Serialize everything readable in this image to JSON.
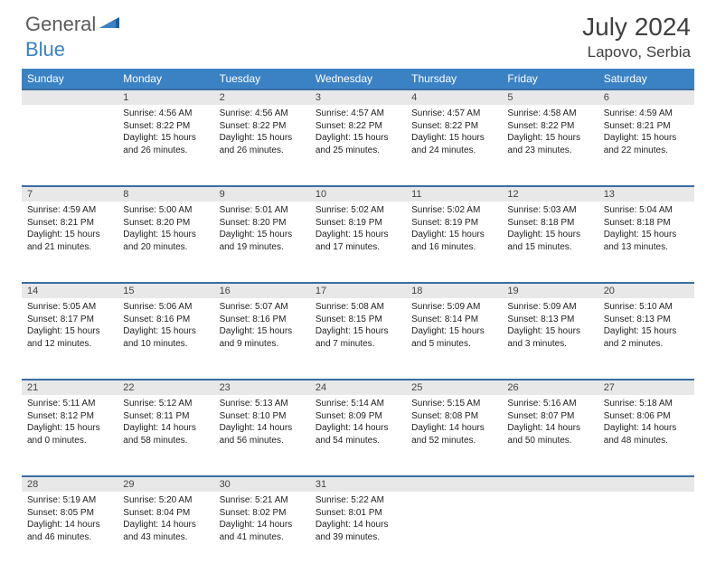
{
  "logo": {
    "general": "General",
    "blue": "Blue"
  },
  "title": "July 2024",
  "location": "Lapovo, Serbia",
  "colors": {
    "header_bg": "#3b82c4",
    "header_text": "#ffffff",
    "daynum_bg": "#e8e8e8",
    "row_divider": "#3b6ea0",
    "body_text": "#222222",
    "title_text": "#404040",
    "logo_gray": "#5b5b5b",
    "logo_blue": "#3b82c4"
  },
  "weekdays": [
    "Sunday",
    "Monday",
    "Tuesday",
    "Wednesday",
    "Thursday",
    "Friday",
    "Saturday"
  ],
  "weeks": [
    {
      "nums": [
        "",
        "1",
        "2",
        "3",
        "4",
        "5",
        "6"
      ],
      "cells": [
        null,
        {
          "sunrise": "Sunrise: 4:56 AM",
          "sunset": "Sunset: 8:22 PM",
          "day1": "Daylight: 15 hours",
          "day2": "and 26 minutes."
        },
        {
          "sunrise": "Sunrise: 4:56 AM",
          "sunset": "Sunset: 8:22 PM",
          "day1": "Daylight: 15 hours",
          "day2": "and 26 minutes."
        },
        {
          "sunrise": "Sunrise: 4:57 AM",
          "sunset": "Sunset: 8:22 PM",
          "day1": "Daylight: 15 hours",
          "day2": "and 25 minutes."
        },
        {
          "sunrise": "Sunrise: 4:57 AM",
          "sunset": "Sunset: 8:22 PM",
          "day1": "Daylight: 15 hours",
          "day2": "and 24 minutes."
        },
        {
          "sunrise": "Sunrise: 4:58 AM",
          "sunset": "Sunset: 8:22 PM",
          "day1": "Daylight: 15 hours",
          "day2": "and 23 minutes."
        },
        {
          "sunrise": "Sunrise: 4:59 AM",
          "sunset": "Sunset: 8:21 PM",
          "day1": "Daylight: 15 hours",
          "day2": "and 22 minutes."
        }
      ]
    },
    {
      "nums": [
        "7",
        "8",
        "9",
        "10",
        "11",
        "12",
        "13"
      ],
      "cells": [
        {
          "sunrise": "Sunrise: 4:59 AM",
          "sunset": "Sunset: 8:21 PM",
          "day1": "Daylight: 15 hours",
          "day2": "and 21 minutes."
        },
        {
          "sunrise": "Sunrise: 5:00 AM",
          "sunset": "Sunset: 8:20 PM",
          "day1": "Daylight: 15 hours",
          "day2": "and 20 minutes."
        },
        {
          "sunrise": "Sunrise: 5:01 AM",
          "sunset": "Sunset: 8:20 PM",
          "day1": "Daylight: 15 hours",
          "day2": "and 19 minutes."
        },
        {
          "sunrise": "Sunrise: 5:02 AM",
          "sunset": "Sunset: 8:19 PM",
          "day1": "Daylight: 15 hours",
          "day2": "and 17 minutes."
        },
        {
          "sunrise": "Sunrise: 5:02 AM",
          "sunset": "Sunset: 8:19 PM",
          "day1": "Daylight: 15 hours",
          "day2": "and 16 minutes."
        },
        {
          "sunrise": "Sunrise: 5:03 AM",
          "sunset": "Sunset: 8:18 PM",
          "day1": "Daylight: 15 hours",
          "day2": "and 15 minutes."
        },
        {
          "sunrise": "Sunrise: 5:04 AM",
          "sunset": "Sunset: 8:18 PM",
          "day1": "Daylight: 15 hours",
          "day2": "and 13 minutes."
        }
      ]
    },
    {
      "nums": [
        "14",
        "15",
        "16",
        "17",
        "18",
        "19",
        "20"
      ],
      "cells": [
        {
          "sunrise": "Sunrise: 5:05 AM",
          "sunset": "Sunset: 8:17 PM",
          "day1": "Daylight: 15 hours",
          "day2": "and 12 minutes."
        },
        {
          "sunrise": "Sunrise: 5:06 AM",
          "sunset": "Sunset: 8:16 PM",
          "day1": "Daylight: 15 hours",
          "day2": "and 10 minutes."
        },
        {
          "sunrise": "Sunrise: 5:07 AM",
          "sunset": "Sunset: 8:16 PM",
          "day1": "Daylight: 15 hours",
          "day2": "and 9 minutes."
        },
        {
          "sunrise": "Sunrise: 5:08 AM",
          "sunset": "Sunset: 8:15 PM",
          "day1": "Daylight: 15 hours",
          "day2": "and 7 minutes."
        },
        {
          "sunrise": "Sunrise: 5:09 AM",
          "sunset": "Sunset: 8:14 PM",
          "day1": "Daylight: 15 hours",
          "day2": "and 5 minutes."
        },
        {
          "sunrise": "Sunrise: 5:09 AM",
          "sunset": "Sunset: 8:13 PM",
          "day1": "Daylight: 15 hours",
          "day2": "and 3 minutes."
        },
        {
          "sunrise": "Sunrise: 5:10 AM",
          "sunset": "Sunset: 8:13 PM",
          "day1": "Daylight: 15 hours",
          "day2": "and 2 minutes."
        }
      ]
    },
    {
      "nums": [
        "21",
        "22",
        "23",
        "24",
        "25",
        "26",
        "27"
      ],
      "cells": [
        {
          "sunrise": "Sunrise: 5:11 AM",
          "sunset": "Sunset: 8:12 PM",
          "day1": "Daylight: 15 hours",
          "day2": "and 0 minutes."
        },
        {
          "sunrise": "Sunrise: 5:12 AM",
          "sunset": "Sunset: 8:11 PM",
          "day1": "Daylight: 14 hours",
          "day2": "and 58 minutes."
        },
        {
          "sunrise": "Sunrise: 5:13 AM",
          "sunset": "Sunset: 8:10 PM",
          "day1": "Daylight: 14 hours",
          "day2": "and 56 minutes."
        },
        {
          "sunrise": "Sunrise: 5:14 AM",
          "sunset": "Sunset: 8:09 PM",
          "day1": "Daylight: 14 hours",
          "day2": "and 54 minutes."
        },
        {
          "sunrise": "Sunrise: 5:15 AM",
          "sunset": "Sunset: 8:08 PM",
          "day1": "Daylight: 14 hours",
          "day2": "and 52 minutes."
        },
        {
          "sunrise": "Sunrise: 5:16 AM",
          "sunset": "Sunset: 8:07 PM",
          "day1": "Daylight: 14 hours",
          "day2": "and 50 minutes."
        },
        {
          "sunrise": "Sunrise: 5:18 AM",
          "sunset": "Sunset: 8:06 PM",
          "day1": "Daylight: 14 hours",
          "day2": "and 48 minutes."
        }
      ]
    },
    {
      "nums": [
        "28",
        "29",
        "30",
        "31",
        "",
        "",
        ""
      ],
      "cells": [
        {
          "sunrise": "Sunrise: 5:19 AM",
          "sunset": "Sunset: 8:05 PM",
          "day1": "Daylight: 14 hours",
          "day2": "and 46 minutes."
        },
        {
          "sunrise": "Sunrise: 5:20 AM",
          "sunset": "Sunset: 8:04 PM",
          "day1": "Daylight: 14 hours",
          "day2": "and 43 minutes."
        },
        {
          "sunrise": "Sunrise: 5:21 AM",
          "sunset": "Sunset: 8:02 PM",
          "day1": "Daylight: 14 hours",
          "day2": "and 41 minutes."
        },
        {
          "sunrise": "Sunrise: 5:22 AM",
          "sunset": "Sunset: 8:01 PM",
          "day1": "Daylight: 14 hours",
          "day2": "and 39 minutes."
        },
        null,
        null,
        null
      ]
    }
  ]
}
